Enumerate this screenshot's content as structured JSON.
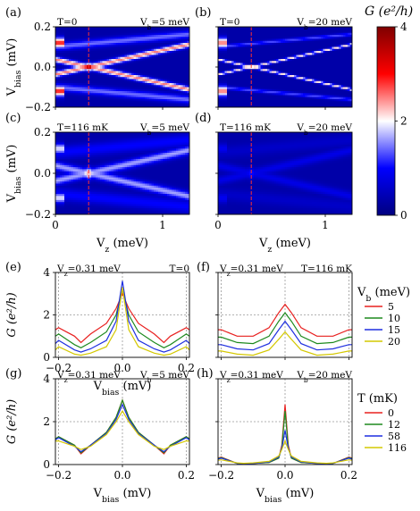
{
  "colorbar": {
    "label": "G (e²/h)",
    "ticks": [
      "0",
      "2",
      "4"
    ],
    "range": [
      0,
      4
    ],
    "colors": [
      "#00007f",
      "#0000ff",
      "#ffffff",
      "#ff0000",
      "#7f0000"
    ]
  },
  "heatmaps": {
    "x_label": "V_z (meV)",
    "y_label": "V_bias (mV)",
    "x_ticks": [
      "0",
      "1"
    ],
    "y_ticks": [
      "0.2",
      "0.0",
      "−0.2"
    ],
    "x_range": [
      0,
      1.25
    ],
    "y_range": [
      -0.2,
      0.2
    ],
    "vz_marker": 0.31,
    "panels": [
      {
        "tag": "(a)",
        "left_text": "T=0",
        "right_text": "V_b=5 meV",
        "vb": 5,
        "t_mk": 0,
        "amplitude": 1.0
      },
      {
        "tag": "(b)",
        "left_text": "T=0",
        "right_text": "V_b=20 meV",
        "vb": 20,
        "t_mk": 0,
        "amplitude": 0.85
      },
      {
        "tag": "(c)",
        "left_text": "T=116 mK",
        "right_text": "V_b=5 meV",
        "vb": 5,
        "t_mk": 116,
        "amplitude": 0.6
      },
      {
        "tag": "(d)",
        "left_text": "T=116 mK",
        "right_text": "V_b=20 meV",
        "vb": 20,
        "t_mk": 116,
        "amplitude": 0.22
      }
    ]
  },
  "chart_data": [
    {
      "type": "line",
      "tag": "(e)",
      "left_text": "V_z=0.31 meV",
      "right_text": "T=0",
      "xlabel": "V_bias (mV)",
      "ylabel": "G (e²/h)",
      "xlim": [
        -0.21,
        0.21
      ],
      "ylim": [
        0,
        4
      ],
      "x_ticks": [
        "−0.2",
        "0.0",
        "0.2"
      ],
      "y_ticks": [
        "0",
        "2",
        "4"
      ],
      "x": [
        -0.21,
        -0.2,
        -0.15,
        -0.13,
        -0.1,
        -0.05,
        -0.02,
        0.0,
        0.02,
        0.05,
        0.1,
        0.13,
        0.15,
        0.2,
        0.21
      ],
      "series": [
        {
          "name": "5",
          "color": "#e8201f",
          "values": [
            1.3,
            1.4,
            1.0,
            0.7,
            1.1,
            1.6,
            2.3,
            3.0,
            2.3,
            1.6,
            1.1,
            0.7,
            1.0,
            1.4,
            1.3
          ]
        },
        {
          "name": "10",
          "color": "#1f8a1f",
          "values": [
            1.0,
            1.1,
            0.6,
            0.45,
            0.7,
            1.2,
            2.0,
            3.2,
            2.0,
            1.2,
            0.7,
            0.45,
            0.6,
            1.1,
            1.0
          ]
        },
        {
          "name": "15",
          "color": "#1f2fe0",
          "values": [
            0.65,
            0.8,
            0.35,
            0.25,
            0.4,
            0.8,
            1.7,
            3.6,
            1.7,
            0.8,
            0.4,
            0.25,
            0.35,
            0.8,
            0.65
          ]
        },
        {
          "name": "20",
          "color": "#d4c800",
          "values": [
            0.35,
            0.5,
            0.15,
            0.1,
            0.2,
            0.5,
            1.3,
            3.3,
            1.3,
            0.5,
            0.2,
            0.1,
            0.15,
            0.5,
            0.35
          ]
        }
      ],
      "legend": {
        "title": "V_b (meV)",
        "placement": "right"
      }
    },
    {
      "type": "line",
      "tag": "(f)",
      "left_text": "V_z=0.31 meV",
      "right_text": "T=116 mK",
      "xlabel": "",
      "ylabel": "",
      "xlim": [
        -0.21,
        0.21
      ],
      "ylim": [
        0,
        4
      ],
      "x": [
        -0.21,
        -0.2,
        -0.15,
        -0.1,
        -0.05,
        -0.02,
        0.0,
        0.02,
        0.05,
        0.1,
        0.15,
        0.2,
        0.21
      ],
      "series": [
        {
          "name": "5",
          "color": "#e8201f",
          "values": [
            1.3,
            1.3,
            1.0,
            1.0,
            1.4,
            2.1,
            2.5,
            2.1,
            1.4,
            1.0,
            1.0,
            1.3,
            1.3
          ]
        },
        {
          "name": "10",
          "color": "#1f8a1f",
          "values": [
            0.95,
            0.95,
            0.7,
            0.65,
            1.0,
            1.7,
            2.1,
            1.7,
            1.0,
            0.65,
            0.7,
            0.95,
            0.95
          ]
        },
        {
          "name": "15",
          "color": "#1f2fe0",
          "values": [
            0.6,
            0.6,
            0.4,
            0.35,
            0.65,
            1.3,
            1.7,
            1.3,
            0.65,
            0.35,
            0.4,
            0.6,
            0.6
          ]
        },
        {
          "name": "20",
          "color": "#d4c800",
          "values": [
            0.3,
            0.3,
            0.15,
            0.1,
            0.35,
            0.85,
            1.2,
            0.85,
            0.35,
            0.1,
            0.15,
            0.3,
            0.3
          ]
        }
      ]
    },
    {
      "type": "line",
      "tag": "(g)",
      "left_text": "V_z=0.31 meV",
      "right_text": "V_b=5 meV",
      "xlabel": "V_bias (mV)",
      "ylabel": "G (e²/h)",
      "xlim": [
        -0.21,
        0.21
      ],
      "ylim": [
        0,
        4
      ],
      "x_ticks": [
        "−0.2",
        "0.0",
        "0.2"
      ],
      "y_ticks": [
        "0",
        "2",
        "4"
      ],
      "x": [
        -0.21,
        -0.2,
        -0.15,
        -0.13,
        -0.1,
        -0.05,
        -0.02,
        0.0,
        0.02,
        0.05,
        0.1,
        0.13,
        0.15,
        0.2,
        0.21
      ],
      "series": [
        {
          "name": "0",
          "color": "#e8201f",
          "values": [
            1.2,
            1.3,
            0.9,
            0.5,
            0.9,
            1.5,
            2.2,
            3.0,
            2.2,
            1.5,
            0.9,
            0.5,
            0.9,
            1.3,
            1.2
          ]
        },
        {
          "name": "12",
          "color": "#1f8a1f",
          "values": [
            1.2,
            1.3,
            0.9,
            0.55,
            0.9,
            1.5,
            2.2,
            3.0,
            2.2,
            1.5,
            0.9,
            0.55,
            0.9,
            1.3,
            1.2
          ]
        },
        {
          "name": "58",
          "color": "#1f2fe0",
          "values": [
            1.15,
            1.25,
            0.85,
            0.6,
            0.9,
            1.45,
            2.1,
            2.8,
            2.1,
            1.45,
            0.9,
            0.6,
            0.85,
            1.25,
            1.15
          ]
        },
        {
          "name": "116",
          "color": "#d4c800",
          "values": [
            1.1,
            1.1,
            0.85,
            0.7,
            0.85,
            1.4,
            2.0,
            2.5,
            2.0,
            1.4,
            0.85,
            0.7,
            0.85,
            1.1,
            1.1
          ]
        }
      ],
      "legend": {
        "title": "T (mK)",
        "placement": "right"
      }
    },
    {
      "type": "line",
      "tag": "(h)",
      "left_text": "V_z=0.31 meV",
      "right_text": "V_b=20 meV",
      "xlabel": "V_bias (mV)",
      "ylabel": "",
      "xlim": [
        -0.21,
        0.21
      ],
      "ylim": [
        0,
        4
      ],
      "x_ticks": [
        "−0.2",
        "0.0",
        "0.2"
      ],
      "x": [
        -0.21,
        -0.2,
        -0.15,
        -0.13,
        -0.1,
        -0.05,
        -0.02,
        -0.01,
        0.0,
        0.01,
        0.02,
        0.05,
        0.1,
        0.13,
        0.15,
        0.2,
        0.21
      ],
      "series": [
        {
          "name": "0",
          "color": "#e8201f",
          "values": [
            0.3,
            0.35,
            0.05,
            0.03,
            0.05,
            0.1,
            0.3,
            0.9,
            2.8,
            0.9,
            0.3,
            0.1,
            0.05,
            0.03,
            0.05,
            0.35,
            0.3
          ]
        },
        {
          "name": "12",
          "color": "#1f8a1f",
          "values": [
            0.28,
            0.33,
            0.05,
            0.03,
            0.05,
            0.1,
            0.3,
            0.8,
            2.5,
            0.8,
            0.3,
            0.1,
            0.05,
            0.03,
            0.05,
            0.33,
            0.28
          ]
        },
        {
          "name": "58",
          "color": "#1f2fe0",
          "values": [
            0.25,
            0.3,
            0.06,
            0.04,
            0.05,
            0.12,
            0.35,
            0.75,
            1.6,
            0.75,
            0.35,
            0.12,
            0.05,
            0.04,
            0.06,
            0.3,
            0.25
          ]
        },
        {
          "name": "116",
          "color": "#d4c800",
          "values": [
            0.2,
            0.22,
            0.08,
            0.06,
            0.08,
            0.15,
            0.4,
            0.7,
            1.1,
            0.7,
            0.4,
            0.15,
            0.08,
            0.06,
            0.08,
            0.22,
            0.2
          ]
        }
      ]
    }
  ]
}
